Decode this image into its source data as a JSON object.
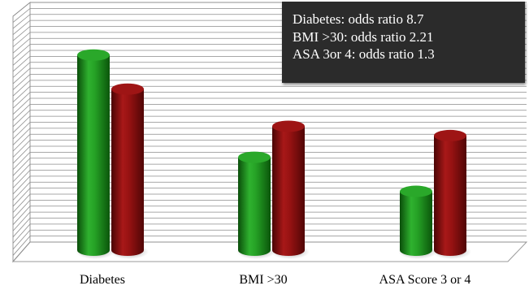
{
  "chart_data": {
    "type": "bar",
    "categories": [
      "Diabetes",
      "BMI >30",
      "ASA Score 3 or 4"
    ],
    "series": [
      {
        "color": "#1e8f1e",
        "values": [
          63,
          30,
          19
        ]
      },
      {
        "color": "#8c0f0f",
        "values": [
          52,
          40,
          37
        ]
      }
    ],
    "ylim": [
      0,
      75
    ],
    "grid": true,
    "annotations": [
      "Diabetes: odds ratio 8.7",
      "BMI >30: odds ratio 2.21",
      "ASA 3or 4: odds ratio 1.3"
    ]
  }
}
